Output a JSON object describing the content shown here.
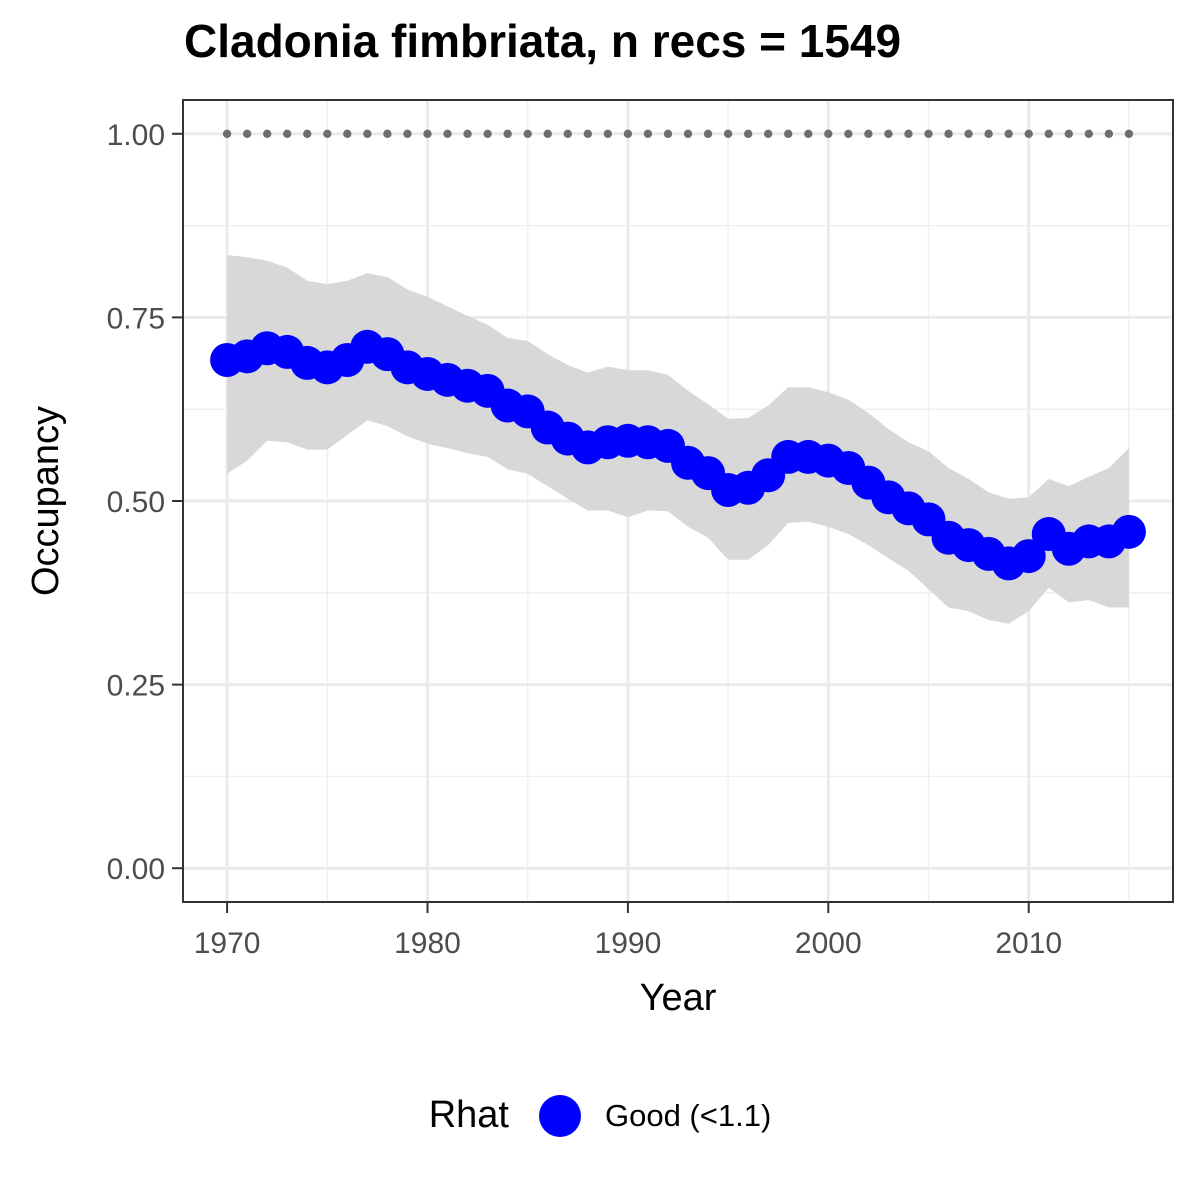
{
  "chart_data": {
    "type": "line",
    "title": "Cladonia fimbriata, n recs = 1549",
    "xlabel": "Year",
    "ylabel": "Occupancy",
    "xlim": [
      1967.8,
      2017.2
    ],
    "ylim": [
      -0.046,
      1.046
    ],
    "x_ticks": [
      1970,
      1980,
      1990,
      2000,
      2010
    ],
    "x_tick_labels": [
      "1970",
      "1980",
      "1990",
      "2000",
      "2010"
    ],
    "y_ticks": [
      0,
      0.25,
      0.5,
      0.75,
      1.0
    ],
    "y_tick_labels": [
      "0.00",
      "0.25",
      "0.50",
      "0.75",
      "1.00"
    ],
    "grid": true,
    "legend": {
      "title": "Rhat",
      "position": "bottom",
      "items": [
        {
          "label": "Good (<1.1)",
          "color": "#0000ff"
        }
      ]
    },
    "x": [
      1970,
      1971,
      1972,
      1973,
      1974,
      1975,
      1976,
      1977,
      1978,
      1979,
      1980,
      1981,
      1982,
      1983,
      1984,
      1985,
      1986,
      1987,
      1988,
      1989,
      1990,
      1991,
      1992,
      1993,
      1994,
      1995,
      1996,
      1997,
      1998,
      1999,
      2000,
      2001,
      2002,
      2003,
      2004,
      2005,
      2006,
      2007,
      2008,
      2009,
      2010,
      2011,
      2012,
      2013,
      2014,
      2015
    ],
    "series": [
      {
        "values": [
          0.692,
          0.697,
          0.708,
          0.703,
          0.688,
          0.682,
          0.692,
          0.71,
          0.7,
          0.682,
          0.673,
          0.665,
          0.657,
          0.65,
          0.63,
          0.622,
          0.6,
          0.585,
          0.573,
          0.58,
          0.582,
          0.58,
          0.575,
          0.552,
          0.538,
          0.515,
          0.518,
          0.535,
          0.56,
          0.56,
          0.555,
          0.545,
          0.525,
          0.505,
          0.49,
          0.475,
          0.45,
          0.44,
          0.428,
          0.415,
          0.425,
          0.455,
          0.435,
          0.445,
          0.445,
          0.458
        ],
        "lower": [
          0.537,
          0.555,
          0.582,
          0.58,
          0.57,
          0.57,
          0.59,
          0.61,
          0.602,
          0.588,
          0.578,
          0.572,
          0.565,
          0.56,
          0.543,
          0.537,
          0.52,
          0.503,
          0.487,
          0.487,
          0.478,
          0.487,
          0.486,
          0.465,
          0.45,
          0.42,
          0.42,
          0.44,
          0.47,
          0.472,
          0.465,
          0.455,
          0.44,
          0.422,
          0.405,
          0.38,
          0.355,
          0.35,
          0.338,
          0.333,
          0.35,
          0.382,
          0.362,
          0.365,
          0.355,
          0.355
        ],
        "upper": [
          0.835,
          0.832,
          0.827,
          0.818,
          0.8,
          0.795,
          0.8,
          0.81,
          0.805,
          0.788,
          0.778,
          0.765,
          0.752,
          0.74,
          0.722,
          0.718,
          0.7,
          0.685,
          0.675,
          0.683,
          0.678,
          0.678,
          0.672,
          0.65,
          0.632,
          0.612,
          0.613,
          0.63,
          0.655,
          0.655,
          0.648,
          0.638,
          0.62,
          0.598,
          0.58,
          0.568,
          0.545,
          0.53,
          0.512,
          0.503,
          0.505,
          0.53,
          0.52,
          0.533,
          0.545,
          0.572
        ],
        "color": "#0000ff",
        "band_color": "#d6d6d6"
      }
    ],
    "reference_line": {
      "y": 1.0,
      "x": [
        1970,
        2015
      ],
      "style": "dotted",
      "color": "#6e6e6e"
    }
  }
}
